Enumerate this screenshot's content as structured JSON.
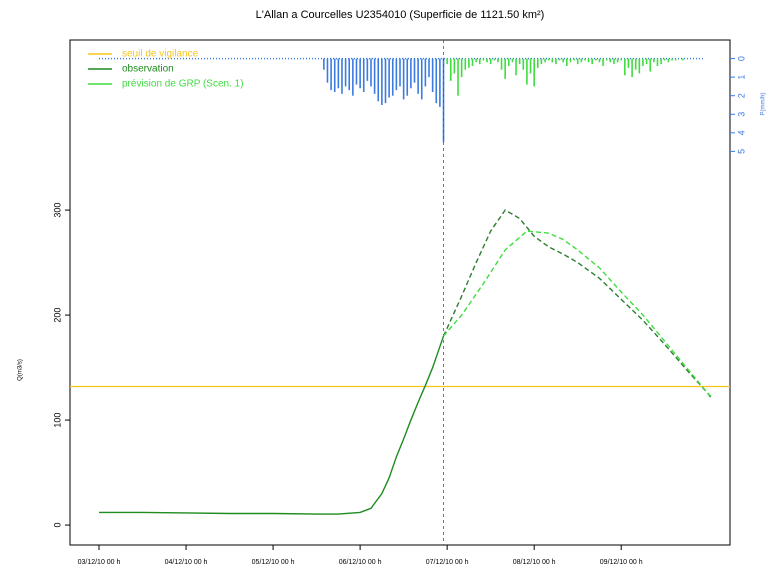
{
  "chart_data": {
    "type": "line",
    "title": "L'Allan a Courcelles U2354010 (Superficie de 1121.50 km²)",
    "ylabel": "Q(m3/s)",
    "y2label": "P(mm/h)",
    "xlim": [
      -8,
      174
    ],
    "xticks": [
      {
        "value": 0,
        "label": "03/12/10 00 h"
      },
      {
        "value": 24,
        "label": "04/12/10 00 h"
      },
      {
        "value": 48,
        "label": "05/12/10 00 h"
      },
      {
        "value": 72,
        "label": "06/12/10 00 h"
      },
      {
        "value": 96,
        "label": "07/12/10 00 h"
      },
      {
        "value": 120,
        "label": "08/12/10 00 h"
      },
      {
        "value": 144,
        "label": "09/12/10 00 h"
      }
    ],
    "ylim": [
      -19,
      462
    ],
    "yticks": [
      0,
      100,
      200,
      300
    ],
    "y2lim": [
      26.2,
      -1
    ],
    "y2ticks": [
      0,
      1,
      2,
      3,
      4,
      5
    ],
    "y2color": "#3b7be0",
    "threshold": {
      "name": "seuil de vigilance",
      "color": "#f5c518",
      "value": 132
    },
    "forecast_time": 95,
    "series": [
      {
        "name": "observation",
        "color": "#1e8c1e",
        "dashed": false,
        "x": [
          0,
          12,
          24,
          36,
          48,
          60,
          66,
          72,
          75,
          78,
          80,
          82,
          84,
          86,
          88,
          90,
          92,
          94,
          95
        ],
        "values": [
          12,
          12,
          11.5,
          11,
          11,
          10.5,
          10.5,
          12,
          16,
          30,
          45,
          65,
          82,
          100,
          117,
          133,
          150,
          170,
          180
        ]
      },
      {
        "color": "#2e7d32",
        "dashed": true,
        "x": [
          95,
          100,
          104,
          108,
          112,
          116,
          120,
          124,
          128,
          132,
          138,
          144,
          150,
          156,
          162,
          168,
          169
        ],
        "values": [
          180,
          218,
          250,
          280,
          300,
          292,
          275,
          265,
          258,
          250,
          235,
          215,
          195,
          172,
          148,
          125,
          120
        ]
      },
      {
        "name": "prévision de GRP (Scen. 1)",
        "color": "#3fdc3f",
        "dashed": true,
        "x": [
          95,
          100,
          106,
          112,
          118,
          124,
          128,
          132,
          138,
          144,
          150,
          156,
          162,
          168,
          169
        ],
        "values": [
          180,
          200,
          230,
          262,
          280,
          278,
          272,
          262,
          245,
          222,
          200,
          175,
          150,
          125,
          122
        ]
      }
    ],
    "rain_series": [
      {
        "color": "#3b7be0",
        "x": [
          62,
          63,
          64,
          65,
          66,
          67,
          68,
          69,
          70,
          71,
          72,
          73,
          74,
          75,
          76,
          77,
          78,
          79,
          80,
          81,
          82,
          83,
          84,
          85,
          86,
          87,
          88,
          89,
          90,
          91,
          92,
          93,
          94,
          95
        ],
        "values": [
          0.6,
          1.3,
          1.7,
          1.8,
          1.6,
          1.9,
          1.5,
          1.7,
          2.0,
          1.4,
          1.6,
          1.8,
          1.2,
          1.5,
          1.9,
          2.3,
          2.5,
          2.4,
          2.1,
          2.0,
          1.7,
          1.5,
          2.2,
          2.0,
          1.6,
          1.3,
          1.9,
          2.2,
          1.5,
          1.0,
          1.8,
          2.4,
          2.6,
          4.5
        ]
      },
      {
        "color": "#3fdc3f",
        "x": [
          96,
          97,
          98,
          99,
          100,
          101,
          102,
          103,
          104,
          105,
          106,
          107,
          108,
          109,
          110,
          111,
          112,
          113,
          114,
          115,
          116,
          117,
          118,
          119,
          120,
          121,
          122,
          123,
          124,
          125,
          126,
          127,
          128,
          129,
          130,
          131,
          132,
          133,
          134,
          135,
          136,
          137,
          138,
          139,
          140,
          141,
          142,
          143,
          144,
          145,
          146,
          147,
          148,
          149,
          150,
          151,
          152,
          153,
          154,
          155,
          156,
          157,
          158,
          159,
          160,
          161,
          162,
          163,
          164,
          165,
          166,
          167
        ],
        "values": [
          0.3,
          1.2,
          0.8,
          2.0,
          1.0,
          0.6,
          0.5,
          0.4,
          0.2,
          0.3,
          0.1,
          0.2,
          0.3,
          0.1,
          0.2,
          0.6,
          1.1,
          0.4,
          0.2,
          0.9,
          0.3,
          0.6,
          1.4,
          0.8,
          1.5,
          0.5,
          0.3,
          0.2,
          0.1,
          0.2,
          0.3,
          0.1,
          0.2,
          0.4,
          0.2,
          0.1,
          0.3,
          0.2,
          0.1,
          0.2,
          0.3,
          0.1,
          0.2,
          0.4,
          0.1,
          0.2,
          0.3,
          0.2,
          0.1,
          0.9,
          0.5,
          1.0,
          0.6,
          0.8,
          0.4,
          0.3,
          0.7,
          0.2,
          0.4,
          0.3,
          0.1,
          0.2,
          0.1,
          0.1,
          0,
          0.1,
          0,
          0,
          0,
          0,
          0,
          0
        ]
      }
    ]
  }
}
